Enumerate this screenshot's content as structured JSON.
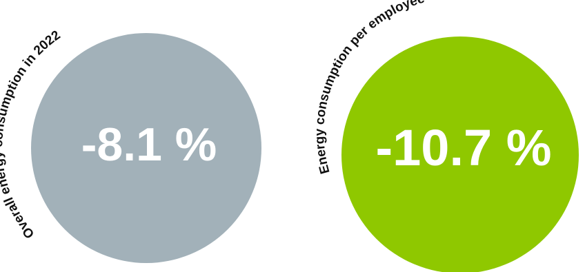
{
  "metrics": [
    {
      "label": "Overall energy consumption in 2022",
      "value": "-8.1 %",
      "color": "#a2b1b9"
    },
    {
      "label": "Energy consumption per employee",
      "value": "-10.7 %",
      "color": "#8fc800"
    }
  ]
}
